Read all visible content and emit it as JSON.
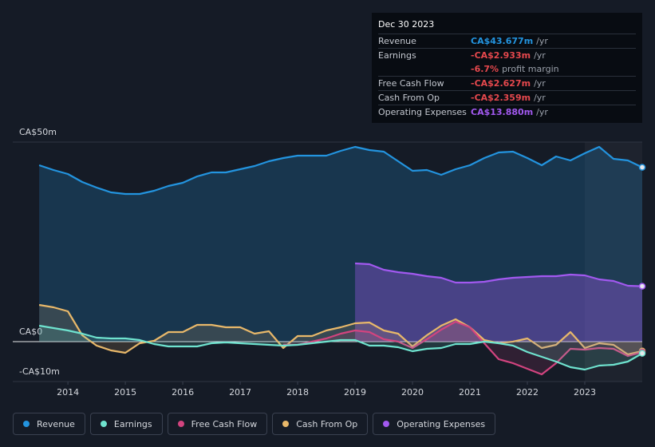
{
  "chart_data": {
    "type": "line",
    "x": [
      2013.5,
      2013.75,
      2014,
      2014.25,
      2014.5,
      2014.75,
      2015,
      2015.25,
      2015.5,
      2015.75,
      2016,
      2016.25,
      2016.5,
      2016.75,
      2017,
      2017.25,
      2017.5,
      2017.75,
      2018,
      2018.25,
      2018.5,
      2018.75,
      2019,
      2019.25,
      2019.5,
      2019.75,
      2020,
      2020.25,
      2020.5,
      2020.75,
      2021,
      2021.25,
      2021.5,
      2021.75,
      2022,
      2022.25,
      2022.5,
      2022.75,
      2023,
      2023.25,
      2023.5,
      2023.75,
      2024
    ],
    "xlim": [
      2013.04,
      2024
    ],
    "xticks": [
      2014,
      2015,
      2016,
      2017,
      2018,
      2019,
      2020,
      2021,
      2022,
      2023
    ],
    "ylim": [
      -10,
      50
    ],
    "yticks": [
      {
        "value": 50,
        "label": "CA$50m"
      },
      {
        "value": 0,
        "label": "CA$0"
      },
      {
        "value": -10,
        "label": "-CA$10m"
      }
    ],
    "grid": true,
    "series": [
      {
        "name": "Revenue",
        "color": "#2394df",
        "values": [
          44.2,
          43,
          42,
          40,
          38.6,
          37.4,
          37,
          37,
          37.8,
          39,
          39.8,
          41.4,
          42.4,
          42.4,
          43.2,
          44,
          45.2,
          46,
          46.6,
          46.6,
          46.6,
          47.8,
          48.8,
          48,
          47.6,
          45.2,
          42.8,
          43,
          41.8,
          43.2,
          44.2,
          46,
          47.4,
          47.6,
          46,
          44.2,
          46.4,
          45.4,
          47.2,
          48.8,
          45.8,
          45.4,
          43.677
        ]
      },
      {
        "name": "Earnings",
        "color": "#6fe3cf",
        "values": [
          4,
          3.4,
          2.8,
          2,
          1,
          0.8,
          0.8,
          0.4,
          -0.6,
          -1.2,
          -1.2,
          -1.2,
          -0.4,
          -0.2,
          -0.4,
          -0.6,
          -0.8,
          -1,
          -0.8,
          -0.4,
          0,
          0.4,
          0.4,
          -1,
          -1,
          -1.4,
          -2.4,
          -1.8,
          -1.6,
          -0.6,
          -0.6,
          0,
          -0.4,
          -1,
          -2.6,
          -3.8,
          -5,
          -6.4,
          -7,
          -6,
          -5.8,
          -5,
          -2.933
        ]
      },
      {
        "name": "Free Cash Flow",
        "color": "#d2447f",
        "values": [
          null,
          null,
          null,
          null,
          null,
          null,
          null,
          null,
          null,
          null,
          null,
          null,
          null,
          null,
          null,
          null,
          null,
          -0.8,
          -0.8,
          0,
          0.8,
          2,
          2.8,
          2.4,
          0.6,
          0,
          -1.6,
          0.6,
          3,
          5,
          3.6,
          -0.4,
          -4.4,
          -5.4,
          -6.8,
          -8.2,
          -5.4,
          -1.8,
          -2,
          -1.6,
          -1.8,
          -3.6,
          -2.627
        ]
      },
      {
        "name": "Cash From Op",
        "color": "#e8b86a",
        "values": [
          9.2,
          8.6,
          7.6,
          1.6,
          -1,
          -2.2,
          -2.8,
          -0.4,
          0.2,
          2.4,
          2.4,
          4.2,
          4.2,
          3.6,
          3.6,
          2,
          2.6,
          -1.6,
          1.4,
          1.4,
          2.8,
          3.6,
          4.6,
          4.8,
          2.8,
          2,
          -1.2,
          1.6,
          4,
          5.6,
          3.6,
          0.4,
          -0.4,
          0,
          0.8,
          -1.6,
          -0.8,
          2.4,
          -1.6,
          -0.4,
          -0.8,
          -3.2,
          -2.359
        ]
      },
      {
        "name": "Operating Expenses",
        "color": "#a259f0",
        "values": [
          null,
          null,
          null,
          null,
          null,
          null,
          null,
          null,
          null,
          null,
          null,
          null,
          null,
          null,
          null,
          null,
          null,
          null,
          null,
          null,
          null,
          null,
          19.6,
          19.4,
          18,
          17.4,
          17,
          16.4,
          16,
          14.8,
          14.8,
          15,
          15.6,
          16,
          16.2,
          16.4,
          16.4,
          16.8,
          16.6,
          15.6,
          15.2,
          14,
          13.88
        ]
      }
    ]
  },
  "tooltip": {
    "date": "Dec 30 2023",
    "rows": [
      {
        "label": "Revenue",
        "value": "CA$43.677m",
        "unit": "/yr",
        "color": "#2394df"
      },
      {
        "label": "Earnings",
        "value": "-CA$2.933m",
        "unit": "/yr",
        "color": "#e5484d"
      },
      {
        "value": "-6.7%",
        "unit": "profit margin",
        "color": "#e5484d"
      },
      {
        "label": "Free Cash Flow",
        "value": "-CA$2.627m",
        "unit": "/yr",
        "color": "#e5484d"
      },
      {
        "label": "Cash From Op",
        "value": "-CA$2.359m",
        "unit": "/yr",
        "color": "#e5484d"
      },
      {
        "label": "Operating Expenses",
        "value": "CA$13.880m",
        "unit": "/yr",
        "color": "#a259f0"
      }
    ]
  }
}
